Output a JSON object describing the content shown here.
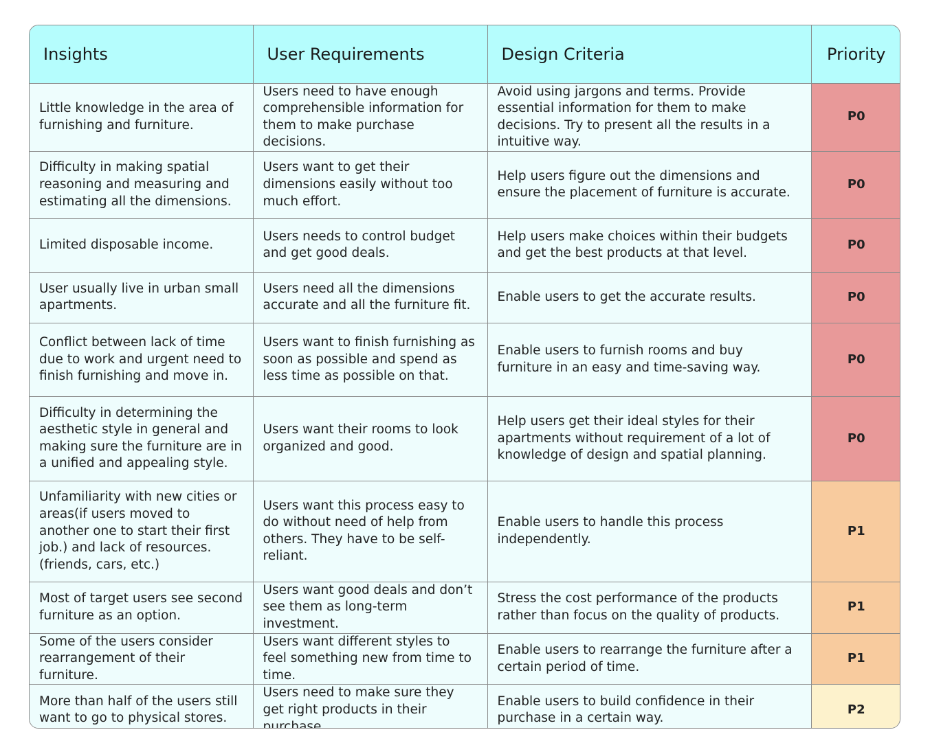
{
  "headers": {
    "insights": "Insights",
    "requirements": "User Requirements",
    "criteria": "Design Criteria",
    "priority": "Priority"
  },
  "colors": {
    "header_bg": "#b5fdfd",
    "cell_bg": "#eefdfd",
    "P0": "#e89999",
    "P1": "#f8cb9e",
    "P2": "#fdf2cc",
    "border": "#8a8a8a"
  },
  "rows": [
    {
      "insight": "Little knowledge in the area of furnishing and furniture.",
      "requirement": "Users need to have enough comprehensible information for them to make purchase decisions.",
      "criteria": "Avoid using jargons and terms. Provide essential information for them to make decisions. Try to present all the results in a intuitive way.",
      "priority": "P0"
    },
    {
      "insight": "Difficulty in making spatial reasoning and measuring and estimating all the dimensions.",
      "requirement": "Users want to get their dimensions easily without too much effort.",
      "criteria": "Help users figure out the dimensions and ensure the placement of furniture is accurate.",
      "priority": "P0"
    },
    {
      "insight": "Limited disposable income.",
      "requirement": "Users needs to control budget and get good deals.",
      "criteria": "Help users make choices within their budgets and get the best products at that level.",
      "priority": "P0"
    },
    {
      "insight": "User usually live in urban small apartments.",
      "requirement": "Users need all the dimensions accurate and all the furniture fit.",
      "criteria": "Enable users to get the accurate results.",
      "priority": "P0"
    },
    {
      "insight": "Conflict between lack of time due to work and urgent need to finish furnishing and move in.",
      "requirement": "Users want to finish furnishing as soon as possible and spend as less time as possible on that.",
      "criteria": "Enable users to furnish rooms and buy furniture in an easy and time-saving way.",
      "priority": "P0"
    },
    {
      "insight": "Difficulty in determining the aesthetic style in general and making sure the furniture are in a unified and appealing style.",
      "requirement": "Users want their rooms to look organized and good.",
      "criteria": "Help users get their ideal styles for their apartments without requirement of a lot of knowledge of design and spatial planning.",
      "priority": "P0"
    },
    {
      "insight": "Unfamiliarity with new cities or areas(if users moved to another one to start their first job.) and lack of resources.(friends, cars, etc.)",
      "requirement": "Users want this process easy to do without need of help from others. They have to be self-reliant.",
      "criteria": "Enable users to handle this process independently.",
      "priority": "P1"
    },
    {
      "insight": "Most of target users see second furniture as an option.",
      "requirement": "Users want good deals and don’t see them as long-term investment.",
      "criteria": "Stress the cost performance of the products rather than focus on the quality of products.",
      "priority": "P1"
    },
    {
      "insight": "Some of the users consider rearrangement of their furniture.",
      "requirement": "Users want different styles to feel something new from time to time.",
      "criteria": "Enable users to rearrange the furniture after a certain period of time.",
      "priority": "P1"
    },
    {
      "insight": "More than half of the users still want to go to physical stores.",
      "requirement": "Users need to make sure they get right products in their purchase.",
      "criteria": "Enable users to build confidence in their purchase in a certain way.",
      "priority": "P2"
    }
  ]
}
